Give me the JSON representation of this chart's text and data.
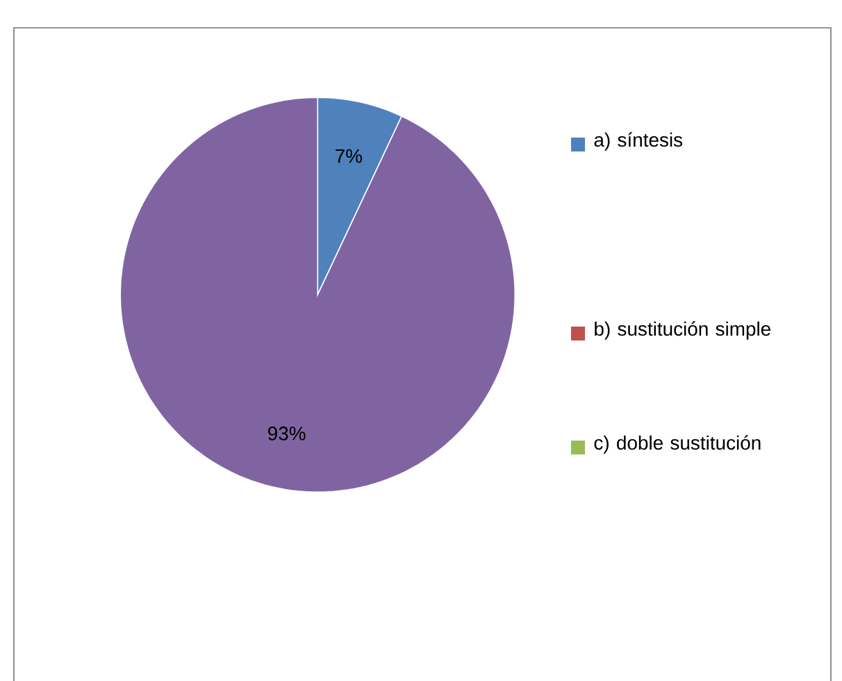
{
  "chart_data": {
    "type": "pie",
    "categories": [
      "a) síntesis",
      "b) sustitución simple",
      "c) doble sustitución",
      null
    ],
    "values": [
      7,
      0,
      0,
      93
    ],
    "colors": [
      "#4f81bd",
      "#c0504d",
      "#9bbb59",
      "#8064a2"
    ],
    "value_labels": [
      "7%",
      null,
      null,
      "93%"
    ],
    "legend": "right"
  }
}
